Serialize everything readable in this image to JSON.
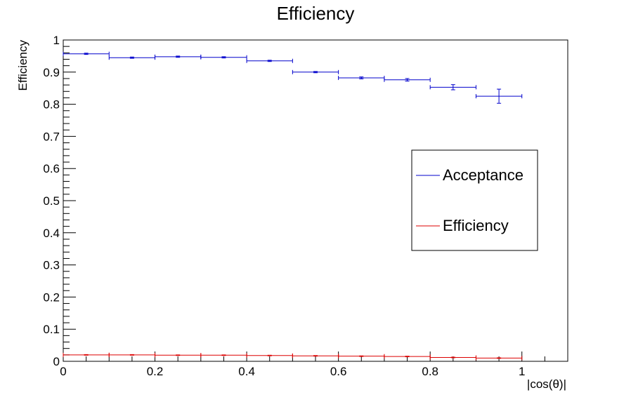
{
  "chart_data": {
    "type": "scatter",
    "title": "Efficiency",
    "xlabel": "|cos(θ)|",
    "ylabel": "Efficiency",
    "xlim": [
      0,
      1.1
    ],
    "ylim": [
      0,
      1
    ],
    "x_ticks": [
      "0",
      "0.2",
      "0.4",
      "0.6",
      "0.8",
      "1"
    ],
    "y_ticks": [
      "0",
      "0.1",
      "0.2",
      "0.3",
      "0.4",
      "0.5",
      "0.6",
      "0.7",
      "0.8",
      "0.9",
      "1"
    ],
    "grid": false,
    "legend_position": "right",
    "series": [
      {
        "name": "Acceptance",
        "color": "#0000cc",
        "x": [
          0.05,
          0.15,
          0.25,
          0.35,
          0.45,
          0.55,
          0.65,
          0.75,
          0.85,
          0.95
        ],
        "y": [
          0.957,
          0.945,
          0.948,
          0.946,
          0.935,
          0.9,
          0.882,
          0.876,
          0.853,
          0.825
        ],
        "xerr": 0.05,
        "yerr": [
          0.002,
          0.002,
          0.002,
          0.002,
          0.002,
          0.002,
          0.003,
          0.004,
          0.008,
          0.022
        ]
      },
      {
        "name": "Efficiency",
        "color": "#dd0000",
        "x": [
          0.05,
          0.15,
          0.25,
          0.35,
          0.45,
          0.55,
          0.65,
          0.75,
          0.85,
          0.95
        ],
        "y": [
          0.02,
          0.02,
          0.019,
          0.019,
          0.018,
          0.017,
          0.016,
          0.015,
          0.012,
          0.01
        ],
        "xerr": 0.05,
        "yerr": [
          0.001,
          0.001,
          0.001,
          0.001,
          0.001,
          0.001,
          0.001,
          0.001,
          0.001,
          0.001
        ]
      }
    ]
  }
}
